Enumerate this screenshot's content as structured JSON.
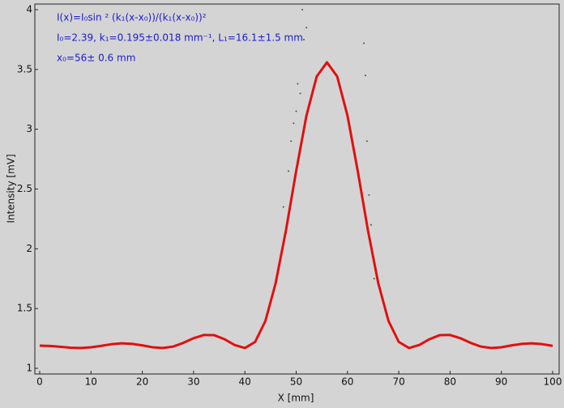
{
  "chart_data": {
    "type": "line",
    "annotations": [
      "I(x)=I₀sin ² (k₁(x-x₀))/(k₁(x-x₀))²",
      "I₀=2.39,  k₁=0.195±0.018 mm⁻¹,   L₁=16.1±1.5 mm",
      "x₀=56±  0.6 mm"
    ],
    "xlabel": "X [mm]",
    "ylabel": "Intensity [mV]",
    "xlim": [
      0,
      100
    ],
    "ylim": [
      1,
      4
    ],
    "xticks": [
      0,
      10,
      20,
      30,
      40,
      50,
      60,
      70,
      80,
      90,
      100
    ],
    "yticks": [
      1,
      1.5,
      2,
      2.5,
      3,
      3.5,
      4
    ],
    "annotation_color": "#1c1ccc",
    "series": [
      {
        "color": "#2f6a1e",
        "style": "points",
        "x": [
          46.5,
          47.5,
          48.5,
          49,
          49.5,
          50,
          50.3,
          50.8,
          51.2,
          51.5,
          52,
          63.2,
          63.5,
          63.8,
          64.2,
          64.6,
          65.2
        ],
        "values": [
          1.8,
          2.35,
          2.65,
          2.9,
          3.05,
          3.15,
          3.38,
          3.3,
          4.0,
          3.75,
          3.85,
          3.72,
          3.45,
          2.9,
          2.45,
          2.2,
          1.75
        ]
      },
      {
        "color": "#e01010",
        "style": "line",
        "x": [
          0,
          2,
          4,
          6,
          8,
          10,
          12,
          14,
          16,
          18,
          20,
          22,
          24,
          26,
          28,
          30,
          32,
          34,
          36,
          38,
          40,
          42,
          44,
          46,
          48,
          50,
          52,
          54,
          56,
          58,
          60,
          62,
          64,
          66,
          68,
          70,
          72,
          74,
          76,
          78,
          80,
          82,
          84,
          86,
          88,
          90,
          92,
          94,
          96,
          98,
          100
        ],
        "values": [
          1.19,
          1.187,
          1.18,
          1.173,
          1.17,
          1.176,
          1.188,
          1.202,
          1.209,
          1.205,
          1.192,
          1.176,
          1.17,
          1.182,
          1.213,
          1.252,
          1.279,
          1.278,
          1.244,
          1.195,
          1.17,
          1.221,
          1.396,
          1.713,
          2.152,
          2.651,
          3.114,
          3.441,
          3.56,
          3.441,
          3.114,
          2.651,
          2.152,
          1.713,
          1.396,
          1.221,
          1.17,
          1.195,
          1.244,
          1.278,
          1.279,
          1.252,
          1.213,
          1.182,
          1.17,
          1.176,
          1.192,
          1.205,
          1.209,
          1.202,
          1.188
        ]
      }
    ]
  }
}
